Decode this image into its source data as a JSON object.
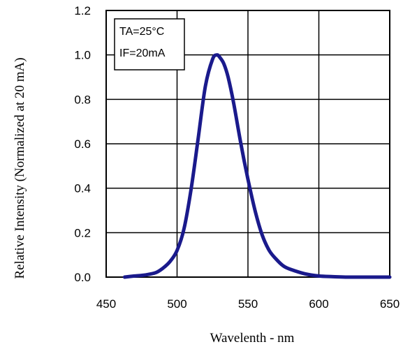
{
  "chart_data": {
    "type": "line",
    "title": "",
    "xlabel": "Wavelenth - nm",
    "ylabel": "Relative Intensity (Normalized at 20 mA)",
    "xlim": [
      450,
      650
    ],
    "ylim": [
      0,
      1.2
    ],
    "x_ticks": [
      "450",
      "500",
      "550",
      "600",
      "650"
    ],
    "y_ticks": [
      "0.0",
      "0.2",
      "0.4",
      "0.6",
      "0.8",
      "1.0",
      "1.2"
    ],
    "grid": true,
    "annotations": [
      "TA=25°C",
      "IF=20mA"
    ],
    "line_color": "#1a1a8c",
    "series": [
      {
        "x": [
          463,
          470,
          478,
          485,
          490,
          495,
          500,
          505,
          510,
          515,
          520,
          525,
          528,
          530,
          533,
          536,
          540,
          545,
          550,
          555,
          560,
          565,
          570,
          575,
          580,
          590,
          600,
          610,
          620,
          630,
          650
        ],
        "values": [
          0.0,
          0.005,
          0.01,
          0.02,
          0.04,
          0.07,
          0.12,
          0.22,
          0.4,
          0.63,
          0.86,
          0.98,
          1.0,
          0.99,
          0.96,
          0.9,
          0.78,
          0.6,
          0.44,
          0.3,
          0.19,
          0.12,
          0.08,
          0.05,
          0.035,
          0.015,
          0.005,
          0.002,
          0.0,
          0.0,
          0.0
        ]
      }
    ]
  }
}
